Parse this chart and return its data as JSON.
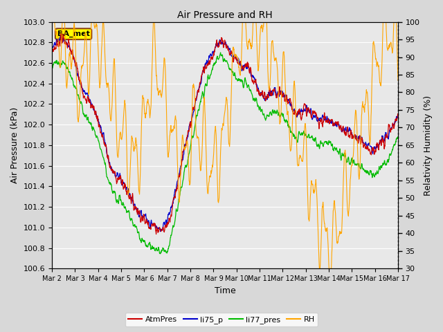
{
  "title": "Air Pressure and RH",
  "xlabel": "Time",
  "ylabel_left": "Air Pressure (kPa)",
  "ylabel_right": "Relativity Humidity (%)",
  "annotation": "BA_met",
  "ylim_left": [
    100.6,
    103.0
  ],
  "ylim_right": [
    30,
    100
  ],
  "yticks_left": [
    100.6,
    100.8,
    101.0,
    101.2,
    101.4,
    101.6,
    101.8,
    102.0,
    102.2,
    102.4,
    102.6,
    102.8,
    103.0
  ],
  "yticks_right": [
    30,
    35,
    40,
    45,
    50,
    55,
    60,
    65,
    70,
    75,
    80,
    85,
    90,
    95,
    100
  ],
  "xtick_labels": [
    "Mar 2",
    "Mar 3",
    "Mar 4",
    "Mar 5",
    "Mar 6",
    "Mar 7",
    "Mar 8",
    "Mar 9",
    "Mar 10",
    "Mar 11",
    "Mar 12",
    "Mar 13",
    "Mar 14",
    "Mar 15",
    "Mar 16",
    "Mar 17"
  ],
  "colors": {
    "AtmPres": "#cc0000",
    "li75_p": "#0000cc",
    "li77_pres": "#00bb00",
    "RH": "#ffa500"
  },
  "legend_labels": [
    "AtmPres",
    "li75_p",
    "li77_pres",
    "RH"
  ],
  "background_color": "#d8d8d8",
  "plot_bg_color": "#e8e8e8",
  "grid_color": "#ffffff",
  "figwidth": 6.4,
  "figheight": 4.8,
  "dpi": 100
}
